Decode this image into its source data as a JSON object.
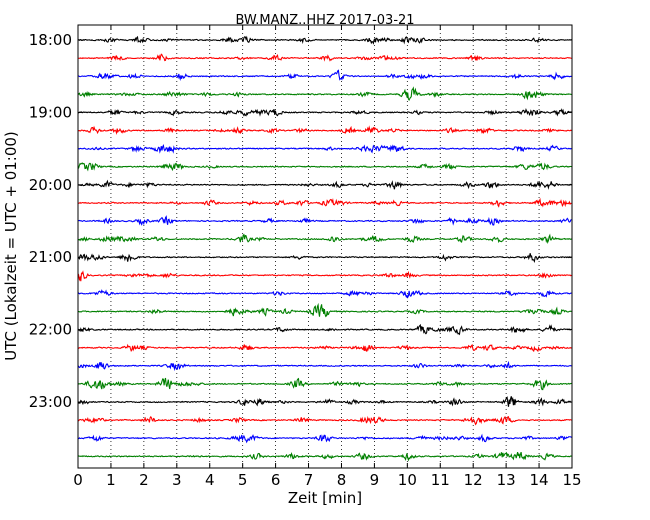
{
  "chart_data": {
    "type": "line",
    "title": "BW.MANZ..HHZ 2017-03-21",
    "xlabel": "Zeit  [min]",
    "ylabel": "UTC (Lokalzeit = UTC + 01:00)",
    "xlim": [
      0,
      15
    ],
    "x_ticks": [
      "0",
      "1",
      "2",
      "3",
      "4",
      "5",
      "6",
      "7",
      "8",
      "9",
      "10",
      "11",
      "12",
      "13",
      "14",
      "15"
    ],
    "y_tick_labels": [
      "18:00",
      "19:00",
      "20:00",
      "21:00",
      "22:00",
      "23:00"
    ],
    "y_tick_every_n_traces": 4,
    "grid": {
      "x": "dotted-vertical",
      "y": false
    },
    "trace_count": 24,
    "trace_interval_minutes": 15,
    "trace_color_cycle": [
      "#000000",
      "#ff0000",
      "#0000ff",
      "#008000"
    ]
  }
}
